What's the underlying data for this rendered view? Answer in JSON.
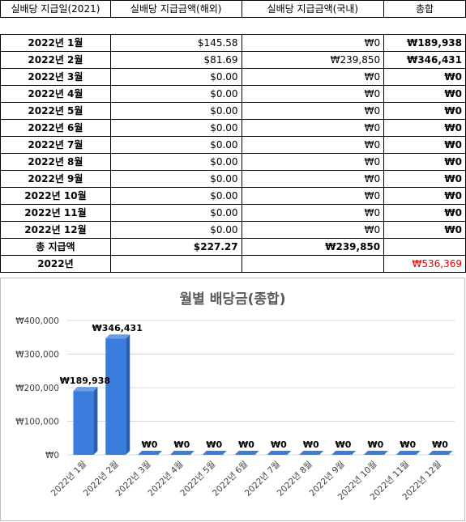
{
  "table": {
    "headers": [
      "실배당 지급일(2021)",
      "실배당 지급금액(해외)",
      "실배당 지급금액(국내)",
      "총합"
    ],
    "rows": [
      {
        "month": "2022년 1월",
        "overseas": "$145.58",
        "domestic": "₩0",
        "total": "₩189,938"
      },
      {
        "month": "2022년 2월",
        "overseas": "$81.69",
        "domestic": "₩239,850",
        "total": "₩346,431"
      },
      {
        "month": "2022년 3월",
        "overseas": "$0.00",
        "domestic": "₩0",
        "total": "₩0"
      },
      {
        "month": "2022년 4월",
        "overseas": "$0.00",
        "domestic": "₩0",
        "total": "₩0"
      },
      {
        "month": "2022년 5월",
        "overseas": "$0.00",
        "domestic": "₩0",
        "total": "₩0"
      },
      {
        "month": "2022년 6월",
        "overseas": "$0.00",
        "domestic": "₩0",
        "total": "₩0"
      },
      {
        "month": "2022년 7월",
        "overseas": "$0.00",
        "domestic": "₩0",
        "total": "₩0"
      },
      {
        "month": "2022년 8월",
        "overseas": "$0.00",
        "domestic": "₩0",
        "total": "₩0"
      },
      {
        "month": "2022년 9월",
        "overseas": "$0.00",
        "domestic": "₩0",
        "total": "₩0"
      },
      {
        "month": "2022년 10월",
        "overseas": "$0.00",
        "domestic": "₩0",
        "total": "₩0"
      },
      {
        "month": "2022년 11월",
        "overseas": "$0.00",
        "domestic": "₩0",
        "total": "₩0"
      },
      {
        "month": "2022년 12월",
        "overseas": "$0.00",
        "domestic": "₩0",
        "total": "₩0"
      }
    ],
    "total_row": {
      "label": "총 지급액",
      "overseas": "$227.27",
      "domestic": "₩239,850"
    },
    "year_row": {
      "label": "2022년",
      "total": "₩536,369"
    }
  },
  "colors": {
    "bar": "#3b7ddd",
    "bar_side": "#2a5fae",
    "grand_total": "#e00000"
  },
  "chart_data": {
    "type": "bar",
    "title": "월별 배당금(종합)",
    "categories": [
      "2022년 1월",
      "2022년 2월",
      "2022년 3월",
      "2022년 4월",
      "2022년 5월",
      "2022년 6월",
      "2022년 7월",
      "2022년 8월",
      "2022년 9월",
      "2022년 10월",
      "2022년 11월",
      "2022년 12월"
    ],
    "values": [
      189938,
      346431,
      0,
      0,
      0,
      0,
      0,
      0,
      0,
      0,
      0,
      0
    ],
    "data_labels": [
      "₩189,938",
      "₩346,431",
      "₩0",
      "₩0",
      "₩0",
      "₩0",
      "₩0",
      "₩0",
      "₩0",
      "₩0",
      "₩0",
      "₩0"
    ],
    "yticks": [
      0,
      100000,
      200000,
      300000,
      400000
    ],
    "ytick_labels": [
      "₩0",
      "₩100,000",
      "₩200,000",
      "₩300,000",
      "₩400,000"
    ],
    "ylim": [
      0,
      400000
    ],
    "grid": true,
    "legend": false,
    "style": "3d-column"
  }
}
